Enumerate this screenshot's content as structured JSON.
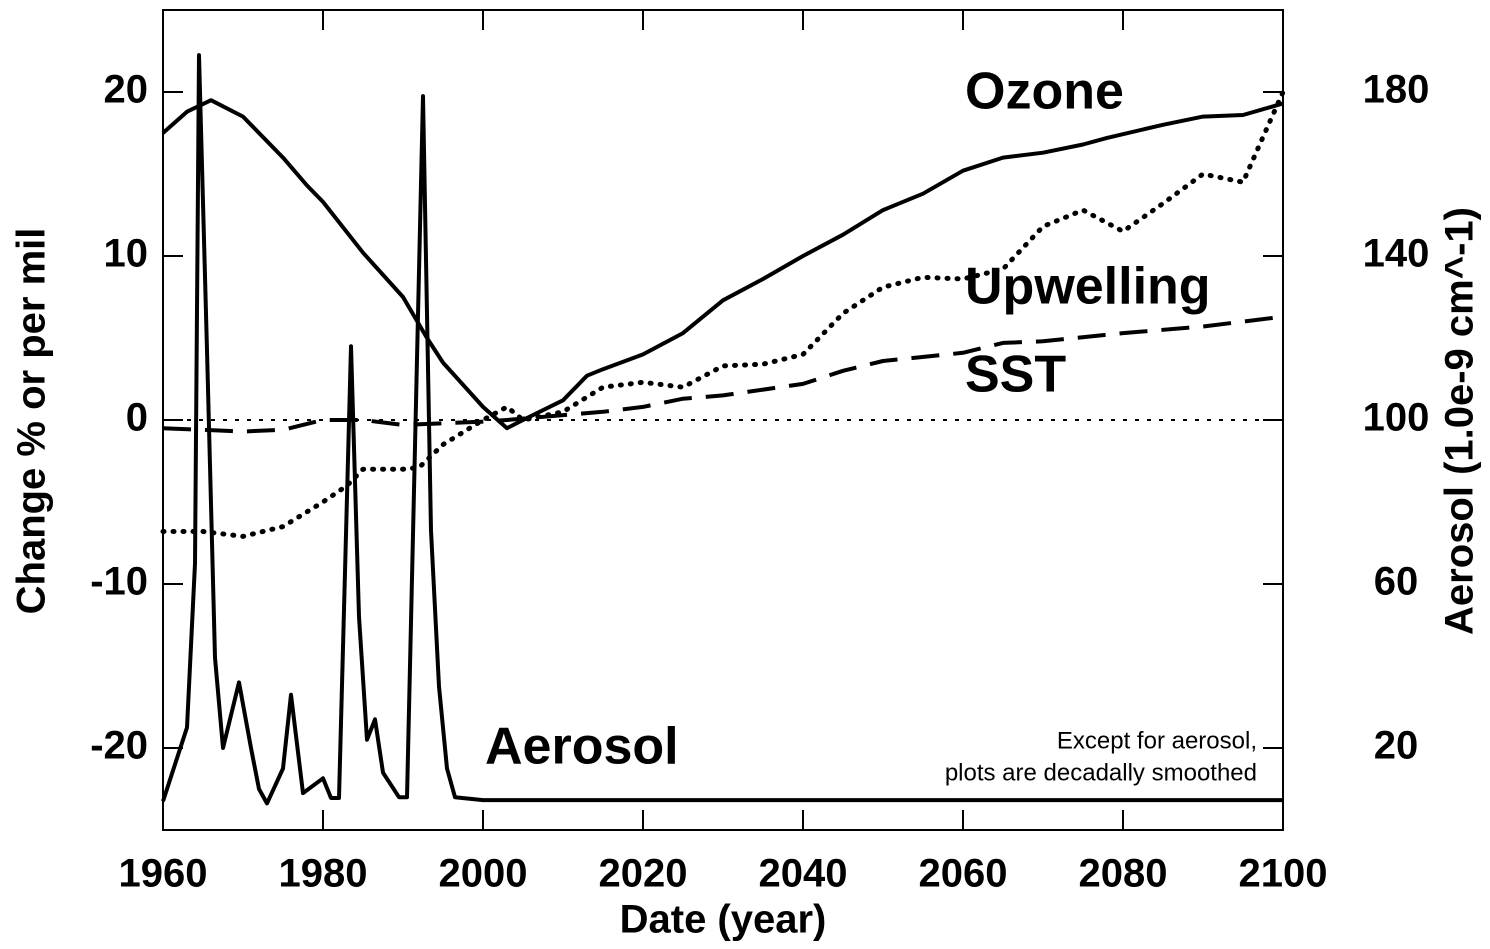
{
  "chart_data": {
    "type": "line",
    "xlabel": "Date (year)",
    "ylabel": "Change % or per mil",
    "y2label": "Aerosol (1.0e-9 cm^-1)",
    "xlim": [
      1960,
      2100
    ],
    "xticks": [
      1960,
      1980,
      2000,
      2020,
      2040,
      2060,
      2080,
      2100
    ],
    "ylim": [
      -25,
      25
    ],
    "yticks": [
      -20,
      -10,
      0,
      10,
      20
    ],
    "y2lim": [
      0,
      200
    ],
    "y2ticks": [
      20,
      60,
      100,
      140,
      180
    ],
    "reference_line": 0,
    "annotation": [
      "Except for aerosol,",
      "plots are decadally smoothed"
    ],
    "series": [
      {
        "name": "Ozone",
        "color": "#000000",
        "style": "solid",
        "x": [
          1960,
          1963,
          1966,
          1970,
          1975,
          1978,
          1980,
          1985,
          1990,
          1993,
          1995,
          2000,
          2003,
          2005,
          2010,
          2013,
          2015,
          2020,
          2025,
          2030,
          2035,
          2040,
          2045,
          2050,
          2055,
          2060,
          2065,
          2070,
          2075,
          2078,
          2085,
          2090,
          2095,
          2100
        ],
        "values": [
          17.5,
          18.8,
          19.5,
          18.5,
          16,
          14.3,
          13.3,
          10.2,
          7.5,
          5,
          3.5,
          0.8,
          -0.5,
          0,
          1.2,
          2.7,
          3.1,
          4,
          5.3,
          7.3,
          8.6,
          10,
          11.3,
          12.8,
          13.8,
          15.2,
          16,
          16.3,
          16.8,
          17.2,
          18,
          18.5,
          18.6,
          19.3
        ]
      },
      {
        "name": "Upwelling",
        "color": "#000000",
        "style": "dotted",
        "x": [
          1960,
          1965,
          1970,
          1975,
          1980,
          1983,
          1985,
          1990,
          1992,
          1995,
          2000,
          2003,
          2005,
          2010,
          2015,
          2020,
          2025,
          2030,
          2035,
          2040,
          2045,
          2050,
          2055,
          2060,
          2065,
          2070,
          2075,
          2080,
          2085,
          2090,
          2095,
          2100
        ],
        "values": [
          -6.8,
          -6.8,
          -7.1,
          -6.5,
          -5,
          -4,
          -3,
          -3,
          -2.9,
          -1.5,
          0,
          0.8,
          0,
          0.5,
          2,
          2.3,
          2,
          3.3,
          3.4,
          4,
          6.5,
          8.1,
          8.7,
          8.6,
          9.2,
          11.8,
          12.8,
          11.5,
          13.2,
          15,
          14.5,
          20
        ]
      },
      {
        "name": "SST",
        "color": "#000000",
        "style": "dashed",
        "x": [
          1960,
          1970,
          1975,
          1980,
          1985,
          1990,
          1995,
          2000,
          2003,
          2010,
          2015,
          2020,
          2025,
          2030,
          2040,
          2045,
          2050,
          2060,
          2065,
          2070,
          2080,
          2090,
          2100
        ],
        "values": [
          -0.5,
          -0.7,
          -0.6,
          0,
          0,
          -0.3,
          -0.2,
          -0.1,
          0,
          0.3,
          0.5,
          0.8,
          1.3,
          1.5,
          2.2,
          3,
          3.6,
          4.1,
          4.7,
          4.8,
          5.3,
          5.7,
          6.3
        ]
      },
      {
        "name": "Aerosol",
        "color": "#000000",
        "style": "solid",
        "axis": "y2",
        "x": [
          1960,
          1963,
          1964,
          1964.5,
          1965.5,
          1966.5,
          1967.5,
          1969.5,
          1971,
          1972,
          1973,
          1975,
          1976,
          1977.5,
          1980,
          1981,
          1982,
          1983.5,
          1984.5,
          1985.5,
          1986.5,
          1987.5,
          1989.5,
          1990.5,
          1992.5,
          1993.5,
          1994.5,
          1995.5,
          1996.5,
          2000,
          2100
        ],
        "values": [
          7,
          25,
          65,
          189,
          117,
          42,
          20,
          36,
          20,
          10,
          6.5,
          15,
          33,
          9,
          12.6,
          7.8,
          7.8,
          118,
          52,
          22,
          27,
          14,
          8,
          8,
          179,
          73,
          35,
          15,
          8,
          7.3,
          7.3
        ]
      }
    ]
  }
}
